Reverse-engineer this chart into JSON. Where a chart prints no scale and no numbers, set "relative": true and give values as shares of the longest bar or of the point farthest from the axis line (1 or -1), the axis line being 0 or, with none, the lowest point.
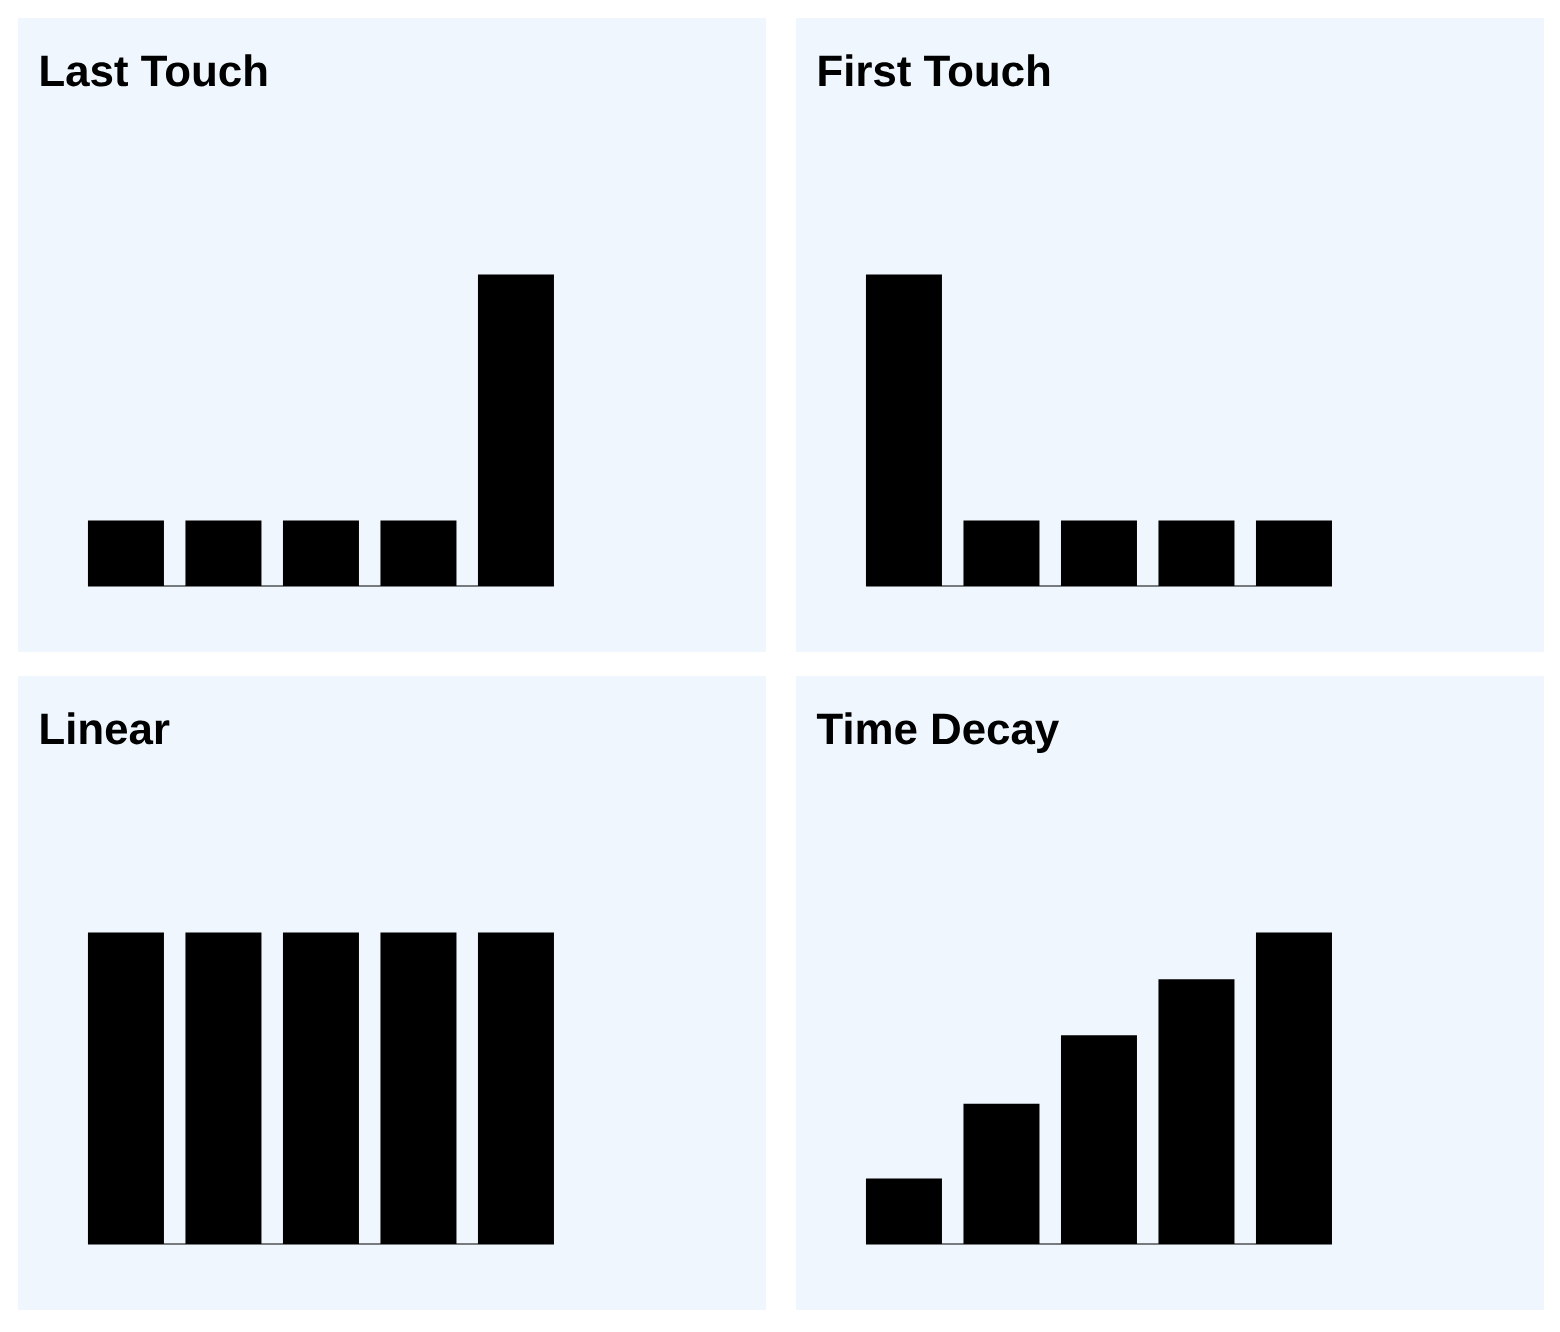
{
  "chart_data": [
    {
      "type": "bar",
      "title": "Last Touch",
      "categories": [
        null,
        null,
        null,
        null,
        null
      ],
      "values": [
        0.21,
        0.21,
        0.21,
        0.21,
        1
      ],
      "color": "#000000",
      "relative": true
    },
    {
      "type": "bar",
      "title": "First Touch",
      "categories": [
        null,
        null,
        null,
        null,
        null
      ],
      "values": [
        1,
        0.21,
        0.21,
        0.21,
        0.21
      ],
      "color": "#000000",
      "relative": true
    },
    {
      "type": "bar",
      "title": "Linear",
      "categories": [
        null,
        null,
        null,
        null,
        null
      ],
      "values": [
        1,
        1,
        1,
        1,
        1
      ],
      "color": "#000000",
      "relative": true
    },
    {
      "type": "bar",
      "title": "Time Decay",
      "categories": [
        null,
        null,
        null,
        null,
        null
      ],
      "values": [
        0.21,
        0.45,
        0.67,
        0.85,
        1
      ],
      "color": "#000000",
      "relative": true
    }
  ]
}
